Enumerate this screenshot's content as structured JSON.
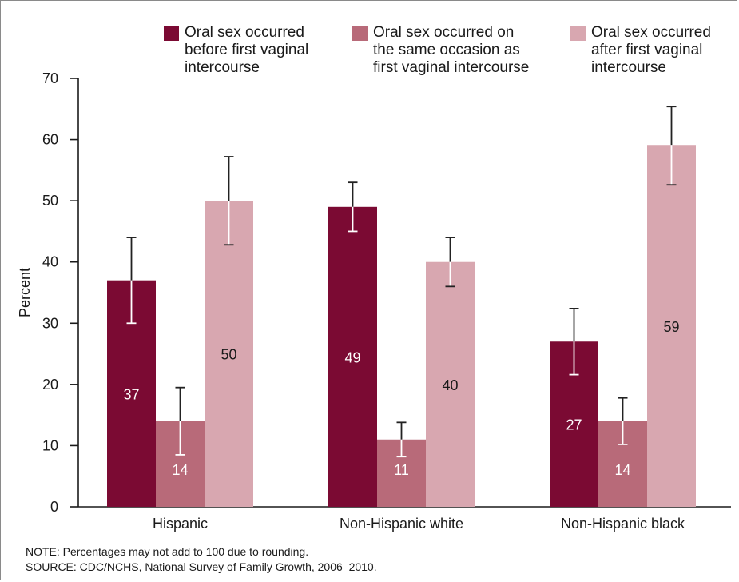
{
  "chart_data": {
    "type": "bar",
    "ylabel": "Percent",
    "xlabel": "",
    "ylim": [
      0,
      70
    ],
    "yticks": [
      0,
      10,
      20,
      30,
      40,
      50,
      60,
      70
    ],
    "grid": false,
    "legend_position": "top",
    "categories": [
      "Hispanic",
      "Non-Hispanic white",
      "Non-Hispanic black"
    ],
    "series": [
      {
        "name": "Oral sex occurred before first vaginal intercourse",
        "color": "#7b0a33",
        "values": [
          37,
          49,
          27
        ],
        "error_low": [
          30,
          45,
          21.6
        ],
        "error_high": [
          44,
          53,
          32.4
        ],
        "labels": [
          "37",
          "49",
          "27"
        ]
      },
      {
        "name": "Oral sex occurred on the same occasion as first vaginal intercourse",
        "color": "#b86a79",
        "values": [
          14,
          11,
          14
        ],
        "error_low": [
          8.5,
          8.2,
          10.2
        ],
        "error_high": [
          19.5,
          13.8,
          17.8
        ],
        "labels": [
          "14",
          "11",
          "14"
        ]
      },
      {
        "name": "Oral sex occurred after first vaginal intercourse",
        "color": "#d8a7b0",
        "values": [
          50,
          40,
          59
        ],
        "error_low": [
          42.8,
          36,
          52.6
        ],
        "error_high": [
          57.2,
          44,
          65.4
        ],
        "labels": [
          "50",
          "40",
          "59"
        ]
      }
    ]
  },
  "legend": [
    "Oral sex occurred\nbefore first vaginal\nintercourse",
    "Oral sex occurred on\nthe same occasion as\nfirst vaginal intercourse",
    "Oral sex occurred\nafter first vaginal\nintercourse"
  ],
  "notes": {
    "note": "NOTE: Percentages may not add to 100 due to rounding.",
    "source": "SOURCE: CDC/NCHS, National Survey of Family Growth, 2006–2010."
  }
}
